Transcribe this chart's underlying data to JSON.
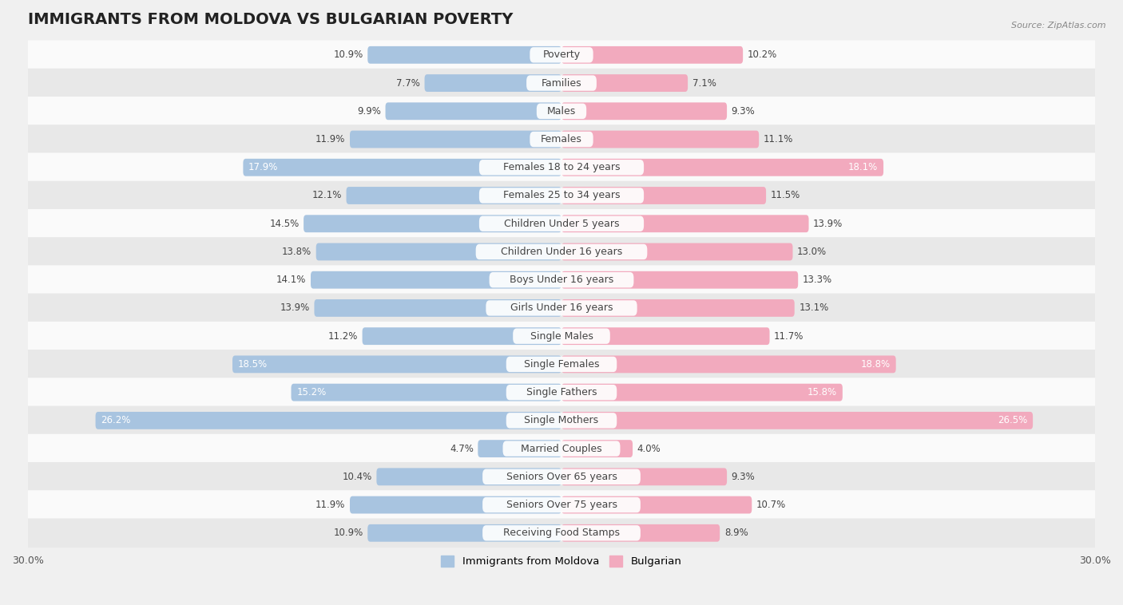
{
  "title": "IMMIGRANTS FROM MOLDOVA VS BULGARIAN POVERTY",
  "source": "Source: ZipAtlas.com",
  "categories": [
    "Poverty",
    "Families",
    "Males",
    "Females",
    "Females 18 to 24 years",
    "Females 25 to 34 years",
    "Children Under 5 years",
    "Children Under 16 years",
    "Boys Under 16 years",
    "Girls Under 16 years",
    "Single Males",
    "Single Females",
    "Single Fathers",
    "Single Mothers",
    "Married Couples",
    "Seniors Over 65 years",
    "Seniors Over 75 years",
    "Receiving Food Stamps"
  ],
  "moldova_values": [
    10.9,
    7.7,
    9.9,
    11.9,
    17.9,
    12.1,
    14.5,
    13.8,
    14.1,
    13.9,
    11.2,
    18.5,
    15.2,
    26.2,
    4.7,
    10.4,
    11.9,
    10.9
  ],
  "bulgarian_values": [
    10.2,
    7.1,
    9.3,
    11.1,
    18.1,
    11.5,
    13.9,
    13.0,
    13.3,
    13.1,
    11.7,
    18.8,
    15.8,
    26.5,
    4.0,
    9.3,
    10.7,
    8.9
  ],
  "moldova_color": "#a8c4e0",
  "bulgarian_color": "#f2aabe",
  "moldova_label": "Immigrants from Moldova",
  "bulgarian_label": "Bulgarian",
  "xlim": 30.0,
  "bar_height": 0.62,
  "background_color": "#f0f0f0",
  "row_colors": [
    "#fafafa",
    "#e8e8e8"
  ],
  "title_fontsize": 14,
  "label_fontsize": 9,
  "value_fontsize": 8.5,
  "axis_label_fontsize": 9,
  "inside_threshold": 15.0
}
